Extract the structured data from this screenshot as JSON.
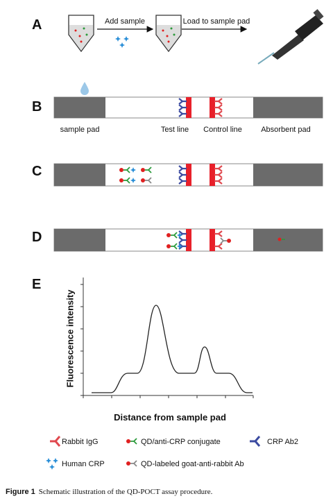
{
  "panels": {
    "a": {
      "label": "A",
      "steps": [
        "Add sample",
        "Load to sample pad"
      ]
    },
    "b": {
      "label": "B",
      "regions": [
        "sample pad",
        "Test line",
        "Control line",
        "Absorbent pad"
      ]
    },
    "c": {
      "label": "C"
    },
    "d": {
      "label": "D"
    },
    "e": {
      "label": "E",
      "y_axis": "Fluorescence intensity",
      "x_axis": "Distance from sample pad"
    }
  },
  "legend": [
    "Rabbit IgG",
    "QD/anti-CRP conjugate",
    "CRP Ab2",
    "Human CRP",
    "QD-labeled goat-anti-rabbit Ab"
  ],
  "caption": {
    "figure": "Figure 1",
    "text": "Schematic illustration of the QD-POCT assay procedure."
  }
}
